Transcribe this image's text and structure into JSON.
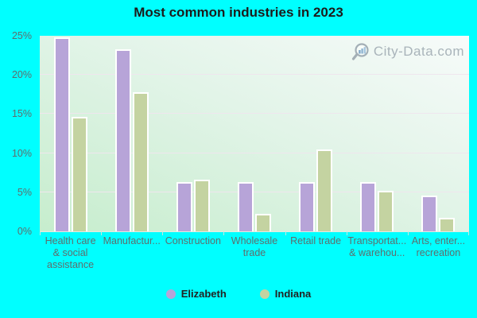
{
  "colors": {
    "background": "#00ffff",
    "elizabeth_bar": "#b7a4d8",
    "indiana_bar": "#c4d3a1"
  },
  "watermark": {
    "text": "City-Data.com"
  },
  "chart_data": {
    "type": "bar",
    "title": "Most common industries in 2023",
    "xlabel": "",
    "ylabel": "",
    "ylim": [
      0,
      25
    ],
    "y_tick_labels": [
      "25%",
      "20%",
      "15%",
      "10%",
      "5%",
      "0%"
    ],
    "grid": true,
    "legend_position": "bottom",
    "categories": [
      {
        "label": "Health care & social assistance",
        "lines": [
          "Health care",
          "& social",
          "assistance"
        ]
      },
      {
        "label": "Manufactur...",
        "lines": [
          "Manufactur..."
        ]
      },
      {
        "label": "Construction",
        "lines": [
          "Construction"
        ]
      },
      {
        "label": "Wholesale trade",
        "lines": [
          "Wholesale",
          "trade"
        ]
      },
      {
        "label": "Retail trade",
        "lines": [
          "Retail trade"
        ]
      },
      {
        "label": "Transportat... & warehou...",
        "lines": [
          "Transportat...",
          "& warehou..."
        ]
      },
      {
        "label": "Arts, enter... recreation",
        "lines": [
          "Arts, enter...",
          "recreation"
        ]
      }
    ],
    "series": [
      {
        "name": "Elizabeth",
        "color": "#b7a4d8",
        "values": [
          24.6,
          23.1,
          6.1,
          6.1,
          6.1,
          6.1,
          4.4
        ]
      },
      {
        "name": "Indiana",
        "color": "#c4d3a1",
        "values": [
          14.4,
          17.6,
          6.4,
          2.0,
          10.3,
          5.0,
          1.5
        ]
      }
    ]
  }
}
